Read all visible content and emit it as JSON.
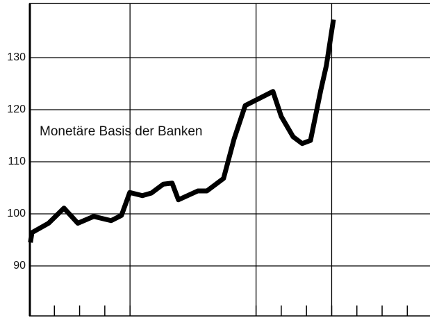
{
  "chart_data": {
    "type": "line",
    "annotation": "Monetäre Basis der Banken",
    "series": [
      {
        "color": "#000000",
        "x": [
          0.05,
          0.11,
          0.77,
          1.38,
          1.93,
          2.56,
          3.25,
          3.66,
          3.99,
          4.49,
          4.85,
          5.32,
          5.67,
          5.92,
          6.69,
          7.05,
          7.71,
          8.13,
          8.57,
          9.67,
          10.0,
          10.47,
          10.83,
          11.16,
          11.57,
          11.79,
          12.07
        ],
        "values": [
          94.5,
          96.4,
          98.2,
          101.1,
          98.2,
          99.5,
          98.7,
          99.7,
          104.1,
          103.5,
          104.0,
          105.7,
          105.9,
          102.7,
          104.4,
          104.4,
          106.8,
          114.4,
          120.8,
          123.5,
          118.7,
          114.8,
          113.5,
          114.1,
          123.8,
          128.5,
          137.3
        ]
      }
    ],
    "xlim": [
      0,
      15.9
    ],
    "xticks": [
      1,
      2,
      3,
      4,
      9,
      10,
      11,
      12,
      13,
      14,
      15
    ],
    "xgrid": [
      4,
      9,
      12
    ],
    "ylim": [
      80.4,
      140.4
    ],
    "yticks": [
      90,
      100,
      110,
      120,
      130
    ],
    "grid": true
  }
}
